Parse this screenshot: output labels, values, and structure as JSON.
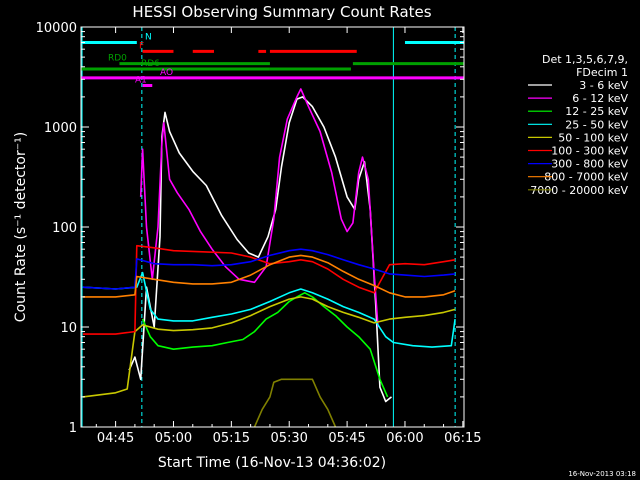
{
  "chart_data": {
    "type": "line",
    "title": "HESSI Observing Summary Count Rates",
    "xlabel": "Start Time (16-Nov-13 04:36:02)",
    "ylabel": "Count Rate (s⁻¹ detector⁻¹)",
    "footer": "16-Nov-2013 03:18",
    "yscale": "log",
    "ylim": [
      1,
      10000
    ],
    "xlim_minutes": [
      276.03,
      375.3
    ],
    "x_unit": "minutes since 00:00 UT, 16-Nov-2013",
    "x_ticks": [
      {
        "label": "04:45",
        "value": 285
      },
      {
        "label": "05:00",
        "value": 300
      },
      {
        "label": "05:15",
        "value": 315
      },
      {
        "label": "05:30",
        "value": 330
      },
      {
        "label": "05:45",
        "value": 345
      },
      {
        "label": "06:00",
        "value": 360
      },
      {
        "label": "06:15",
        "value": 375
      }
    ],
    "y_ticks": [
      {
        "label": "1",
        "value": 1
      },
      {
        "label": "10",
        "value": 10
      },
      {
        "label": "100",
        "value": 100
      },
      {
        "label": "1000",
        "value": 1000
      },
      {
        "label": "10000",
        "value": 10000
      }
    ],
    "legend_header": [
      "Det 1,3,5,6,7,9,",
      "FDecim 1"
    ],
    "legend_placement": "right",
    "grid": false,
    "flag_bars": [
      {
        "label": "N",
        "color": "#00ffff",
        "y": 7000,
        "segments": [
          [
            276.0,
            290.5
          ],
          [
            360.0,
            375.3
          ]
        ]
      },
      {
        "label": "F",
        "color": "#ff0000",
        "y": 5700,
        "segments": [
          [
            292.0,
            300.0
          ],
          [
            305.0,
            310.5
          ],
          [
            322.0,
            324.0
          ],
          [
            325.0,
            347.5
          ]
        ]
      },
      {
        "label": "RD0",
        "color": "#00a000",
        "y": 4300,
        "segments": [
          [
            286.0,
            325.0
          ],
          [
            346.5,
            375.3
          ]
        ]
      },
      {
        "label": "RD6",
        "color": "#00a000",
        "y": 3800,
        "segments": [
          [
            276.0,
            325.0
          ],
          [
            325.0,
            346.0
          ]
        ]
      },
      {
        "label": "AO",
        "color": "#ff00ff",
        "y": 3100,
        "segments": [
          [
            276.0,
            375.3
          ]
        ]
      },
      {
        "label": "A1",
        "color": "#ff00ff",
        "y": 2600,
        "segments": [
          [
            292.0,
            294.5
          ]
        ]
      }
    ],
    "vertical_markers": [
      {
        "x": 276.3,
        "color": "#00ffff",
        "style": "solid"
      },
      {
        "x": 291.8,
        "color": "#00ffff",
        "style": "dashed"
      },
      {
        "x": 357.0,
        "color": "#00ffff",
        "style": "solid"
      },
      {
        "x": 373.0,
        "color": "#00ffff",
        "style": "dashed"
      }
    ],
    "series": [
      {
        "name": "3 - 6 keV",
        "color": "#ffffff",
        "points": [
          [
            288.5,
            3.7
          ],
          [
            290.0,
            5.0
          ],
          [
            291.5,
            3.0
          ],
          [
            293.0,
            25.0
          ],
          [
            295.0,
            10.0
          ],
          [
            296.5,
            80.0
          ],
          [
            297.0,
            800.0
          ],
          [
            297.8,
            1400.0
          ],
          [
            299.0,
            900.0
          ],
          [
            301.5,
            550.0
          ],
          [
            305.0,
            360.0
          ],
          [
            308.5,
            260.0
          ],
          [
            312.5,
            130.0
          ],
          [
            316.5,
            75.0
          ],
          [
            319.5,
            55.0
          ],
          [
            322.0,
            50.0
          ],
          [
            324.5,
            80.0
          ],
          [
            326.5,
            150.0
          ],
          [
            328.0,
            400.0
          ],
          [
            330.0,
            1100.0
          ],
          [
            332.0,
            1900.0
          ],
          [
            333.5,
            2000.0
          ],
          [
            336.0,
            1600.0
          ],
          [
            339.0,
            1000.0
          ],
          [
            342.0,
            500.0
          ],
          [
            345.0,
            200.0
          ],
          [
            347.0,
            150.0
          ],
          [
            348.0,
            300.0
          ],
          [
            349.5,
            450.0
          ],
          [
            351.0,
            150.0
          ],
          [
            352.5,
            15.0
          ],
          [
            353.5,
            2.5
          ],
          [
            355.0,
            1.8
          ],
          [
            356.5,
            2.0
          ]
        ]
      },
      {
        "name": "6 - 12 keV",
        "color": "#ff00ff",
        "points": [
          [
            291.5,
            200.0
          ],
          [
            292.0,
            600.0
          ],
          [
            293.0,
            100.0
          ],
          [
            294.5,
            30.0
          ],
          [
            296.0,
            100.0
          ],
          [
            297.0,
            700.0
          ],
          [
            297.5,
            1100.0
          ],
          [
            299.0,
            300.0
          ],
          [
            301.0,
            220.0
          ],
          [
            304.0,
            150.0
          ],
          [
            307.0,
            90.0
          ],
          [
            310.0,
            60.0
          ],
          [
            313.5,
            40.0
          ],
          [
            317.0,
            30.0
          ],
          [
            321.0,
            28.0
          ],
          [
            324.0,
            40.0
          ],
          [
            326.0,
            120.0
          ],
          [
            327.5,
            500.0
          ],
          [
            329.5,
            1200.0
          ],
          [
            332.0,
            2000.0
          ],
          [
            333.0,
            2400.0
          ],
          [
            335.0,
            1600.0
          ],
          [
            338.0,
            900.0
          ],
          [
            341.0,
            350.0
          ],
          [
            343.5,
            120.0
          ],
          [
            345.0,
            90.0
          ],
          [
            346.5,
            110.0
          ],
          [
            348.0,
            350.0
          ],
          [
            349.0,
            500.0
          ],
          [
            350.5,
            300.0
          ],
          [
            352.0,
            35.0
          ],
          [
            353.0,
            10.0
          ]
        ]
      },
      {
        "name": "12 - 25 keV",
        "color": "#00ff00",
        "points": [
          [
            292.0,
            12.0
          ],
          [
            294.0,
            8.0
          ],
          [
            296.0,
            6.5
          ],
          [
            300.0,
            6.0
          ],
          [
            305.0,
            6.3
          ],
          [
            310.0,
            6.5
          ],
          [
            314.0,
            7.0
          ],
          [
            318.0,
            7.5
          ],
          [
            321.0,
            9.0
          ],
          [
            324.0,
            12.0
          ],
          [
            327.0,
            14.0
          ],
          [
            330.0,
            18.0
          ],
          [
            332.0,
            20.0
          ],
          [
            334.0,
            22.0
          ],
          [
            336.0,
            20.0
          ],
          [
            339.0,
            16.0
          ],
          [
            342.0,
            13.0
          ],
          [
            345.0,
            10.0
          ],
          [
            348.0,
            8.0
          ],
          [
            351.0,
            6.0
          ],
          [
            353.5,
            3.0
          ],
          [
            355.5,
            2.0
          ]
        ]
      },
      {
        "name": "25 - 50 keV",
        "color": "#00ffff",
        "points": [
          [
            276.5,
            25.0
          ],
          [
            285.0,
            24.0
          ],
          [
            290.5,
            25.0
          ],
          [
            292.0,
            35.0
          ],
          [
            294.0,
            15.0
          ],
          [
            296.0,
            12.0
          ],
          [
            300.0,
            11.5
          ],
          [
            305.0,
            11.5
          ],
          [
            310.0,
            12.5
          ],
          [
            315.0,
            13.5
          ],
          [
            320.0,
            15.0
          ],
          [
            325.0,
            18.0
          ],
          [
            330.0,
            22.0
          ],
          [
            333.0,
            24.0
          ],
          [
            336.0,
            22.0
          ],
          [
            340.0,
            19.0
          ],
          [
            344.0,
            16.0
          ],
          [
            348.0,
            14.0
          ],
          [
            352.0,
            12.0
          ],
          [
            355.0,
            8.0
          ],
          [
            357.0,
            7.0
          ],
          [
            362.0,
            6.5
          ],
          [
            367.0,
            6.3
          ],
          [
            372.0,
            6.5
          ],
          [
            373.0,
            12.0
          ]
        ]
      },
      {
        "name": "50 - 100 keV",
        "color": "#c8c800",
        "points": [
          [
            276.5,
            2.0
          ],
          [
            285.0,
            2.2
          ],
          [
            288.0,
            2.4
          ],
          [
            290.0,
            9.0
          ],
          [
            292.0,
            10.5
          ],
          [
            296.0,
            9.5
          ],
          [
            300.0,
            9.2
          ],
          [
            305.0,
            9.4
          ],
          [
            310.0,
            9.8
          ],
          [
            315.0,
            11.0
          ],
          [
            320.0,
            13.0
          ],
          [
            325.0,
            16.0
          ],
          [
            330.0,
            19.0
          ],
          [
            333.0,
            20.0
          ],
          [
            336.0,
            19.0
          ],
          [
            340.0,
            16.0
          ],
          [
            344.0,
            14.0
          ],
          [
            348.0,
            12.5
          ],
          [
            352.0,
            11.0
          ],
          [
            356.0,
            12.0
          ],
          [
            360.0,
            12.5
          ],
          [
            365.0,
            13.0
          ],
          [
            370.0,
            14.0
          ],
          [
            373.0,
            15.0
          ]
        ]
      },
      {
        "name": "100 - 300 keV",
        "color": "#ff0000",
        "points": [
          [
            276.5,
            8.5
          ],
          [
            285.0,
            8.5
          ],
          [
            290.0,
            9.0
          ],
          [
            290.5,
            65.0
          ],
          [
            295.0,
            62.0
          ],
          [
            300.0,
            58.0
          ],
          [
            305.0,
            57.0
          ],
          [
            310.0,
            56.0
          ],
          [
            315.0,
            55.0
          ],
          [
            320.0,
            50.0
          ],
          [
            325.0,
            43.0
          ],
          [
            330.0,
            45.0
          ],
          [
            333.0,
            47.0
          ],
          [
            336.0,
            45.0
          ],
          [
            340.0,
            38.0
          ],
          [
            344.0,
            30.0
          ],
          [
            348.0,
            25.0
          ],
          [
            352.0,
            22.0
          ],
          [
            356.0,
            42.0
          ],
          [
            360.0,
            43.0
          ],
          [
            365.0,
            42.0
          ],
          [
            370.0,
            45.0
          ],
          [
            373.0,
            47.0
          ]
        ]
      },
      {
        "name": "300 - 800 keV",
        "color": "#0000ff",
        "points": [
          [
            276.5,
            25.0
          ],
          [
            285.0,
            24.0
          ],
          [
            290.0,
            25.0
          ],
          [
            290.5,
            48.0
          ],
          [
            295.0,
            43.0
          ],
          [
            300.0,
            42.0
          ],
          [
            305.0,
            42.0
          ],
          [
            310.0,
            41.0
          ],
          [
            315.0,
            42.0
          ],
          [
            320.0,
            45.0
          ],
          [
            325.0,
            52.0
          ],
          [
            330.0,
            58.0
          ],
          [
            333.0,
            60.0
          ],
          [
            336.0,
            58.0
          ],
          [
            340.0,
            53.0
          ],
          [
            344.0,
            47.0
          ],
          [
            348.0,
            42.0
          ],
          [
            352.0,
            38.0
          ],
          [
            356.0,
            34.0
          ],
          [
            360.0,
            33.0
          ],
          [
            365.0,
            32.0
          ],
          [
            370.0,
            33.0
          ],
          [
            373.0,
            34.0
          ]
        ]
      },
      {
        "name": "800 - 7000 keV",
        "color": "#ff8000",
        "points": [
          [
            276.5,
            20.0
          ],
          [
            285.0,
            20.0
          ],
          [
            290.0,
            21.0
          ],
          [
            290.5,
            32.0
          ],
          [
            295.0,
            30.0
          ],
          [
            300.0,
            28.0
          ],
          [
            305.0,
            27.0
          ],
          [
            310.0,
            27.0
          ],
          [
            315.0,
            28.0
          ],
          [
            320.0,
            33.0
          ],
          [
            325.0,
            42.0
          ],
          [
            330.0,
            50.0
          ],
          [
            333.0,
            52.0
          ],
          [
            336.0,
            50.0
          ],
          [
            340.0,
            44.0
          ],
          [
            344.0,
            36.0
          ],
          [
            348.0,
            30.0
          ],
          [
            352.0,
            26.0
          ],
          [
            356.0,
            22.0
          ],
          [
            360.0,
            20.0
          ],
          [
            365.0,
            20.0
          ],
          [
            370.0,
            21.0
          ],
          [
            373.0,
            23.0
          ]
        ]
      },
      {
        "name": "7000 - 20000 keV",
        "color": "#808000",
        "points": [
          [
            321.0,
            1.0
          ],
          [
            323.0,
            1.5
          ],
          [
            325.0,
            2.0
          ],
          [
            326.0,
            2.8
          ],
          [
            328.0,
            3.0
          ],
          [
            332.0,
            3.0
          ],
          [
            336.0,
            3.0
          ],
          [
            338.0,
            2.0
          ],
          [
            340.0,
            1.5
          ],
          [
            342.0,
            1.0
          ]
        ]
      }
    ]
  }
}
